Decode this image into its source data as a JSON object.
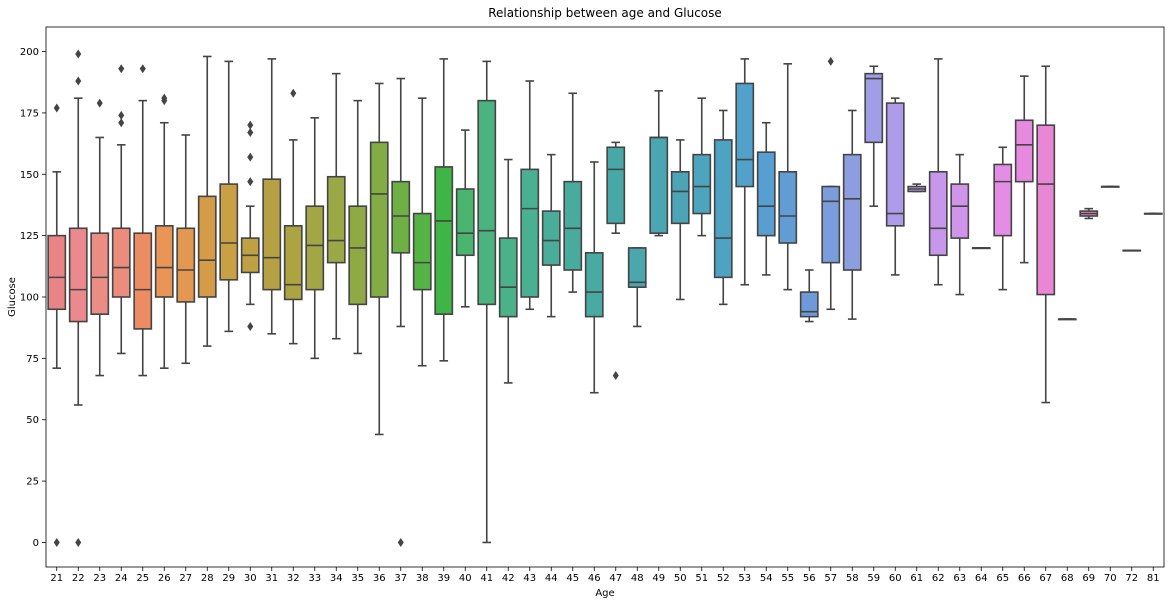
{
  "chart_data": {
    "type": "box",
    "title": "Relationship between age and Glucose",
    "xlabel": "Age",
    "ylabel": "Glucose",
    "ylim": [
      -10,
      210
    ],
    "yticks": [
      0,
      25,
      50,
      75,
      100,
      125,
      150,
      175,
      200
    ],
    "grid": false,
    "categories": [
      "21",
      "22",
      "23",
      "24",
      "25",
      "26",
      "27",
      "28",
      "29",
      "30",
      "31",
      "32",
      "33",
      "34",
      "35",
      "36",
      "37",
      "38",
      "39",
      "40",
      "41",
      "42",
      "43",
      "44",
      "45",
      "46",
      "47",
      "48",
      "49",
      "50",
      "51",
      "52",
      "53",
      "54",
      "55",
      "56",
      "57",
      "58",
      "59",
      "60",
      "61",
      "62",
      "63",
      "64",
      "65",
      "66",
      "67",
      "68",
      "69",
      "70",
      "72",
      "81"
    ],
    "boxes": [
      {
        "min": 71,
        "q1": 95,
        "median": 108,
        "q3": 125,
        "max": 151,
        "fliers": [
          177,
          0
        ],
        "color": "#e98486"
      },
      {
        "min": 56,
        "q1": 90,
        "median": 103,
        "q3": 128,
        "max": 181,
        "fliers": [
          199,
          188,
          0
        ],
        "color": "#ea8a8e"
      },
      {
        "min": 68,
        "q1": 93,
        "median": 108,
        "q3": 126,
        "max": 165,
        "fliers": [
          179
        ],
        "color": "#eb8d85"
      },
      {
        "min": 77,
        "q1": 100,
        "median": 112,
        "q3": 128,
        "max": 162,
        "fliers": [
          193,
          174,
          171
        ],
        "color": "#ec8c7c"
      },
      {
        "min": 68,
        "q1": 87,
        "median": 103,
        "q3": 126,
        "max": 180,
        "fliers": [
          193
        ],
        "color": "#ec8c62"
      },
      {
        "min": 71,
        "q1": 100,
        "median": 112,
        "q3": 129,
        "max": 171,
        "fliers": [
          181,
          180
        ],
        "color": "#e99558"
      },
      {
        "min": 73,
        "q1": 98,
        "median": 111,
        "q3": 128,
        "max": 166,
        "fliers": [],
        "color": "#e29850"
      },
      {
        "min": 80,
        "q1": 100,
        "median": 115,
        "q3": 141,
        "max": 198,
        "fliers": [],
        "color": "#d49c47"
      },
      {
        "min": 86,
        "q1": 107,
        "median": 122,
        "q3": 146,
        "max": 196,
        "fliers": [],
        "color": "#c9a044"
      },
      {
        "min": 97,
        "q1": 110,
        "median": 117,
        "q3": 124,
        "max": 137,
        "fliers": [
          170,
          167,
          157,
          147,
          88
        ],
        "color": "#bfa143"
      },
      {
        "min": 85,
        "q1": 103,
        "median": 116,
        "q3": 148,
        "max": 197,
        "fliers": [],
        "color": "#b5a043"
      },
      {
        "min": 81,
        "q1": 99,
        "median": 105,
        "q3": 129,
        "max": 164,
        "fliers": [
          183
        ],
        "color": "#aca343"
      },
      {
        "min": 75,
        "q1": 103,
        "median": 121,
        "q3": 137,
        "max": 173,
        "fliers": [],
        "color": "#a3a645"
      },
      {
        "min": 83,
        "q1": 114,
        "median": 123,
        "q3": 149,
        "max": 191,
        "fliers": [],
        "color": "#9ba846"
      },
      {
        "min": 77,
        "q1": 97,
        "median": 120,
        "q3": 137,
        "max": 180,
        "fliers": [],
        "color": "#8faa45"
      },
      {
        "min": 44,
        "q1": 100,
        "median": 142,
        "q3": 163,
        "max": 187,
        "fliers": [],
        "color": "#82ad45"
      },
      {
        "min": 88,
        "q1": 118,
        "median": 133,
        "q3": 147,
        "max": 189,
        "fliers": [
          0
        ],
        "color": "#6fb045"
      },
      {
        "min": 72,
        "q1": 103,
        "median": 114,
        "q3": 134,
        "max": 181,
        "fliers": [],
        "color": "#55b345"
      },
      {
        "min": 74,
        "q1": 93,
        "median": 131,
        "q3": 153,
        "max": 197,
        "fliers": [],
        "color": "#3fb545"
      },
      {
        "min": 96,
        "q1": 117,
        "median": 126,
        "q3": 144,
        "max": 168,
        "fliers": [],
        "color": "#49b56e"
      },
      {
        "min": 0,
        "q1": 97,
        "median": 127,
        "q3": 180,
        "max": 196,
        "fliers": [],
        "color": "#4ab37f"
      },
      {
        "min": 65,
        "q1": 92,
        "median": 104,
        "q3": 124,
        "max": 156,
        "fliers": [],
        "color": "#4ab189"
      },
      {
        "min": 95,
        "q1": 100,
        "median": 136,
        "q3": 152,
        "max": 188,
        "fliers": [],
        "color": "#4ab092"
      },
      {
        "min": 92,
        "q1": 113,
        "median": 123,
        "q3": 135,
        "max": 158,
        "fliers": [],
        "color": "#49ad99"
      },
      {
        "min": 102,
        "q1": 111,
        "median": 128,
        "q3": 147,
        "max": 183,
        "fliers": [],
        "color": "#48ab9e"
      },
      {
        "min": 61,
        "q1": 92,
        "median": 102,
        "q3": 118,
        "max": 155,
        "fliers": [],
        "color": "#48aaa3"
      },
      {
        "min": 126,
        "q1": 130,
        "median": 152,
        "q3": 161,
        "max": 163,
        "fliers": [
          68
        ],
        "color": "#48a8a8"
      },
      {
        "min": 88,
        "q1": 104,
        "median": 106,
        "q3": 120,
        "max": 120,
        "fliers": [],
        "color": "#49a7ad"
      },
      {
        "min": 125,
        "q1": 126,
        "median": 165,
        "q3": 165,
        "max": 184,
        "fliers": [],
        "color": "#4aa6b2"
      },
      {
        "min": 99,
        "q1": 130,
        "median": 143,
        "q3": 151,
        "max": 164,
        "fliers": [],
        "color": "#4ba5b7"
      },
      {
        "min": 125,
        "q1": 134,
        "median": 145,
        "q3": 158,
        "max": 181,
        "fliers": [],
        "color": "#4ca4bd"
      },
      {
        "min": 97,
        "q1": 108,
        "median": 124,
        "q3": 164,
        "max": 176,
        "fliers": [],
        "color": "#4ea3c3"
      },
      {
        "min": 105,
        "q1": 145,
        "median": 156,
        "q3": 187,
        "max": 197,
        "fliers": [],
        "color": "#51a1ca"
      },
      {
        "min": 109,
        "q1": 125,
        "median": 137,
        "q3": 159,
        "max": 171,
        "fliers": [],
        "color": "#579fd0"
      },
      {
        "min": 103,
        "q1": 122,
        "median": 133,
        "q3": 151,
        "max": 195,
        "fliers": [],
        "color": "#619dd5"
      },
      {
        "min": 90,
        "q1": 92,
        "median": 94,
        "q3": 102,
        "max": 111,
        "fliers": [],
        "color": "#6e9ad9"
      },
      {
        "min": 95,
        "q1": 114,
        "median": 139,
        "q3": 145,
        "max": 145,
        "fliers": [
          196
        ],
        "color": "#7b9ddc"
      },
      {
        "min": 91,
        "q1": 111,
        "median": 140,
        "q3": 158,
        "max": 176,
        "fliers": [],
        "color": "#8d9edf"
      },
      {
        "min": 137,
        "q1": 163,
        "median": 189,
        "q3": 191,
        "max": 194,
        "fliers": [],
        "color": "#a09ee6"
      },
      {
        "min": 109,
        "q1": 129,
        "median": 134,
        "q3": 179,
        "max": 181,
        "fliers": [],
        "color": "#ae9cea"
      },
      {
        "min": 143,
        "q1": 143,
        "median": 144,
        "q3": 145,
        "max": 146,
        "fliers": [],
        "color": "#b99aeb"
      },
      {
        "min": 105,
        "q1": 117,
        "median": 128,
        "q3": 151,
        "max": 197,
        "fliers": [],
        "color": "#c697eb"
      },
      {
        "min": 101,
        "q1": 124,
        "median": 137,
        "q3": 146,
        "max": 158,
        "fliers": [],
        "color": "#d194eb"
      },
      {
        "min": 120,
        "q1": 120,
        "median": 120,
        "q3": 120,
        "max": 120,
        "fliers": [],
        "color": "#d992ea"
      },
      {
        "min": 103,
        "q1": 125,
        "median": 147,
        "q3": 154,
        "max": 161,
        "fliers": [],
        "color": "#e38de7"
      },
      {
        "min": 114,
        "q1": 147,
        "median": 162,
        "q3": 172,
        "max": 190,
        "fliers": [],
        "color": "#e889e0"
      },
      {
        "min": 57,
        "q1": 101,
        "median": 146,
        "q3": 170,
        "max": 194,
        "fliers": [],
        "color": "#e987d6"
      },
      {
        "min": 91,
        "q1": 91,
        "median": 91,
        "q3": 91,
        "max": 91,
        "fliers": [],
        "color": "#ea87ca"
      },
      {
        "min": 132,
        "q1": 133,
        "median": 134,
        "q3": 135,
        "max": 136,
        "fliers": [],
        "color": "#ea87c0"
      },
      {
        "min": 145,
        "q1": 145,
        "median": 145,
        "q3": 145,
        "max": 145,
        "fliers": [],
        "color": "#ea87b4"
      },
      {
        "min": 119,
        "q1": 119,
        "median": 119,
        "q3": 119,
        "max": 119,
        "fliers": [],
        "color": "#ea87a8"
      },
      {
        "min": 134,
        "q1": 134,
        "median": 134,
        "q3": 134,
        "max": 134,
        "fliers": [],
        "color": "#ea879c"
      }
    ]
  }
}
